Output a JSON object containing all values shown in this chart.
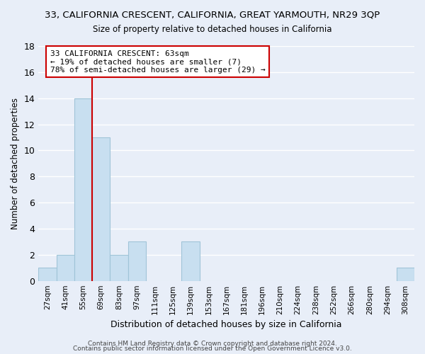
{
  "title": "33, CALIFORNIA CRESCENT, CALIFORNIA, GREAT YARMOUTH, NR29 3QP",
  "subtitle": "Size of property relative to detached houses in California",
  "xlabel": "Distribution of detached houses by size in California",
  "ylabel": "Number of detached properties",
  "footer_line1": "Contains HM Land Registry data © Crown copyright and database right 2024.",
  "footer_line2": "Contains public sector information licensed under the Open Government Licence v3.0.",
  "bar_labels": [
    "27sqm",
    "41sqm",
    "55sqm",
    "69sqm",
    "83sqm",
    "97sqm",
    "111sqm",
    "125sqm",
    "139sqm",
    "153sqm",
    "167sqm",
    "181sqm",
    "196sqm",
    "210sqm",
    "224sqm",
    "238sqm",
    "252sqm",
    "266sqm",
    "280sqm",
    "294sqm",
    "308sqm"
  ],
  "bar_values": [
    1,
    2,
    14,
    11,
    2,
    3,
    0,
    0,
    3,
    0,
    0,
    0,
    0,
    0,
    0,
    0,
    0,
    0,
    0,
    0,
    1
  ],
  "bar_color": "#c8dff0",
  "bar_edge_color": "#a0c4d8",
  "ylim": [
    0,
    18
  ],
  "yticks": [
    0,
    2,
    4,
    6,
    8,
    10,
    12,
    14,
    16,
    18
  ],
  "annotation_box_color": "#ffffff",
  "annotation_box_edge_color": "#cc0000",
  "annotation_text_line1": "33 CALIFORNIA CRESCENT: 63sqm",
  "annotation_text_line2": "← 19% of detached houses are smaller (7)",
  "annotation_text_line3": "78% of semi-detached houses are larger (29) →",
  "vertical_line_color": "#cc0000",
  "background_color": "#e8eef8",
  "grid_color": "#ffffff",
  "vline_index": 2.5
}
